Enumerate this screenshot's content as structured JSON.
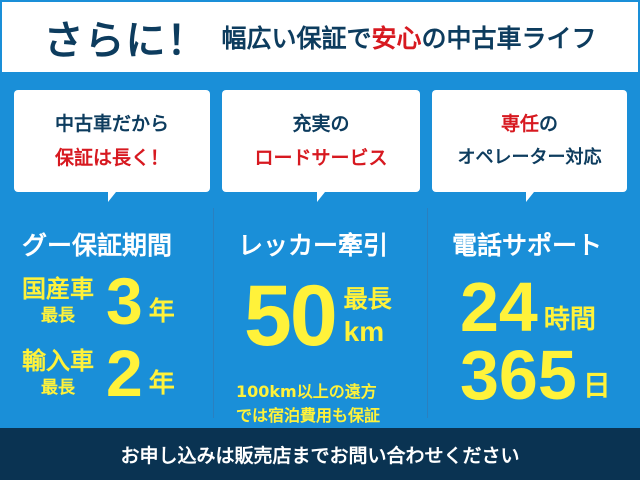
{
  "header": {
    "lead": "さらに！",
    "title_pre": "幅広い保証で",
    "title_accent": "安心",
    "title_post": "の中古車ライフ"
  },
  "bubbles": [
    {
      "line1": "中古車だから",
      "line2": "保証は長く！",
      "line2_color": "red"
    },
    {
      "line1": "充実の",
      "line2": "ロードサービス",
      "line2_color": "red"
    },
    {
      "line1_accent": "専任",
      "line1_rest": "の",
      "line2": "オペレーター対応"
    }
  ],
  "warranty": {
    "heading": "グー保証期間",
    "domestic": {
      "label": "国産車",
      "prefix": "最長",
      "value": "3",
      "unit": "年"
    },
    "imported": {
      "label": "輸入車",
      "prefix": "最長",
      "value": "2",
      "unit": "年"
    }
  },
  "towing": {
    "heading": "レッカー牽引",
    "value": "50",
    "prefix": "最長",
    "unit": "km",
    "note1": "100km以上の遠方",
    "note2": "では宿泊費用も保証"
  },
  "phone": {
    "heading": "電話サポート",
    "hours": "24",
    "hours_unit": "時間",
    "days": "365",
    "days_unit": "日"
  },
  "footer": {
    "text": "お申し込みは販売店までお問い合わせください"
  },
  "colors": {
    "blue": "#1a8fd8",
    "navy": "#0a3352",
    "text": "#0d3c5e",
    "red": "#d71920",
    "yellow": "#fff23a"
  }
}
